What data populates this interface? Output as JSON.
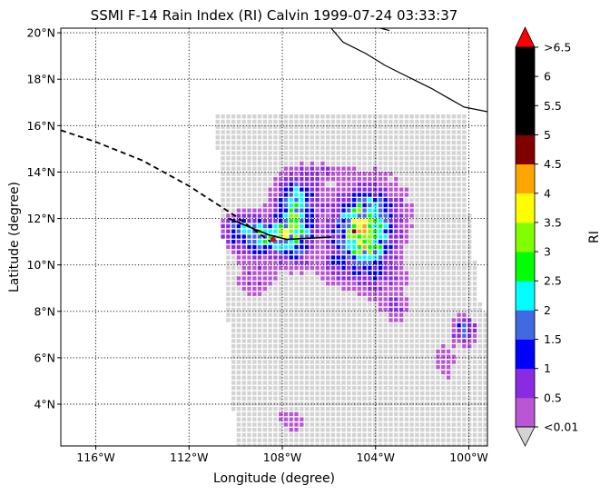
{
  "chart_data": {
    "type": "heatmap",
    "title": "SSMI F-14 Rain Index (RI) Calvin 1999-07-24 03:33:37",
    "xlabel": "Longitude (degree)",
    "ylabel": "Latitude (degree)",
    "xlim": [
      -117.5,
      -99.2
    ],
    "ylim": [
      2.2,
      20.2
    ],
    "xticks": [
      {
        "value": -116,
        "label": "116°W"
      },
      {
        "value": -112,
        "label": "112°W"
      },
      {
        "value": -108,
        "label": "108°W"
      },
      {
        "value": -104,
        "label": "104°W"
      },
      {
        "value": -100,
        "label": "100°W"
      }
    ],
    "yticks": [
      {
        "value": 4,
        "label": "4°N"
      },
      {
        "value": 6,
        "label": "6°N"
      },
      {
        "value": 8,
        "label": "8°N"
      },
      {
        "value": 10,
        "label": "10°N"
      },
      {
        "value": 12,
        "label": "12°N"
      },
      {
        "value": 14,
        "label": "14°N"
      },
      {
        "value": 16,
        "label": "16°N"
      },
      {
        "value": 18,
        "label": "18°N"
      },
      {
        "value": 20,
        "label": "20°N"
      }
    ],
    "grid": true,
    "colorbar": {
      "label": "RI",
      "bins": [
        {
          "color": "#d3d3d3"
        },
        {
          "color": "#ba55d3"
        },
        {
          "color": "#8a2be2"
        },
        {
          "color": "#0000ff"
        },
        {
          "color": "#4169e1"
        },
        {
          "color": "#00ffff"
        },
        {
          "color": "#00ff00"
        },
        {
          "color": "#7fff00"
        },
        {
          "color": "#ffff00"
        },
        {
          "color": "#ffa500"
        },
        {
          "color": "#800000"
        },
        {
          "color": "#000000"
        },
        {
          "color": "#000000"
        },
        {
          "color": "#000000"
        },
        {
          "color": "#ff0000"
        }
      ],
      "ticklabels": [
        "<0.01",
        "0.5",
        "1",
        "1.5",
        "2",
        "2.5",
        "3",
        "3.5",
        "4",
        "4.5",
        "5",
        "5.5",
        "6",
        ">6.5"
      ]
    },
    "swath": {
      "center_lon": -104.3,
      "center_lat": 9.2,
      "inner_radius_deg": 6.9,
      "outer_radius_deg": 11.4
    },
    "rain_cells": [
      {
        "lon": -104.6,
        "lat": 11.2,
        "peak": 3.2,
        "sx": 0.7,
        "sy": 0.8
      },
      {
        "lon": -104.3,
        "lat": 12.3,
        "peak": 1.4,
        "sx": 0.9,
        "sy": 0.9
      },
      {
        "lon": -107.5,
        "lat": 11.7,
        "peak": 2.6,
        "sx": 0.55,
        "sy": 0.95
      },
      {
        "lon": -108.8,
        "lat": 11.1,
        "peak": 2.0,
        "sx": 0.8,
        "sy": 0.45
      },
      {
        "lon": -109.7,
        "lat": 11.6,
        "peak": 1.2,
        "sx": 0.6,
        "sy": 0.4
      },
      {
        "lon": -107.3,
        "lat": 13.1,
        "peak": 0.9,
        "sx": 0.6,
        "sy": 0.5
      },
      {
        "lon": -103.9,
        "lat": 9.6,
        "peak": 0.6,
        "sx": 0.8,
        "sy": 0.8
      },
      {
        "lon": -100.2,
        "lat": 7.2,
        "peak": 1.6,
        "sx": 0.3,
        "sy": 0.35
      },
      {
        "lon": -109.2,
        "lat": 9.4,
        "peak": 0.5,
        "sx": 0.5,
        "sy": 0.6
      },
      {
        "lon": -105.8,
        "lat": 9.8,
        "peak": 0.6,
        "sx": 0.4,
        "sy": 0.5
      },
      {
        "lon": -103.1,
        "lat": 8.1,
        "peak": 0.5,
        "sx": 0.35,
        "sy": 0.4
      },
      {
        "lon": -106.5,
        "lat": 14.0,
        "peak": 0.55,
        "sx": 0.7,
        "sy": 0.25
      },
      {
        "lon": -107.6,
        "lat": 3.3,
        "peak": 0.45,
        "sx": 0.5,
        "sy": 0.3
      },
      {
        "lon": -101.0,
        "lat": 5.8,
        "peak": 0.5,
        "sx": 0.3,
        "sy": 0.5
      }
    ],
    "track": [
      {
        "lon": -117.5,
        "lat": 15.8
      },
      {
        "lon": -116.0,
        "lat": 15.3
      },
      {
        "lon": -114.0,
        "lat": 14.5
      },
      {
        "lon": -112.0,
        "lat": 13.4
      },
      {
        "lon": -110.0,
        "lat": 12.1
      },
      {
        "lon": -109.2,
        "lat": 11.5
      },
      {
        "lon": -108.5,
        "lat": 11.0
      }
    ],
    "current_segment": [
      {
        "lon": -110.3,
        "lat": 12.0
      },
      {
        "lon": -108.6,
        "lat": 11.3
      },
      {
        "lon": -107.8,
        "lat": 11.1
      },
      {
        "lon": -105.9,
        "lat": 11.2
      }
    ],
    "storm_position": {
      "lon": -108.4,
      "lat": 11.1
    },
    "coastline": [
      {
        "lon": -105.9,
        "lat": 20.2
      },
      {
        "lon": -105.4,
        "lat": 19.6
      },
      {
        "lon": -104.4,
        "lat": 19.1
      },
      {
        "lon": -103.6,
        "lat": 18.6
      },
      {
        "lon": -103.0,
        "lat": 18.3
      },
      {
        "lon": -102.2,
        "lat": 17.9
      },
      {
        "lon": -101.6,
        "lat": 17.6
      },
      {
        "lon": -100.9,
        "lat": 17.2
      },
      {
        "lon": -100.2,
        "lat": 16.8
      },
      {
        "lon": -99.2,
        "lat": 16.6
      }
    ],
    "coastline_top": [
      {
        "lon": -103.8,
        "lat": 20.2
      },
      {
        "lon": -103.4,
        "lat": 20.1
      }
    ]
  }
}
